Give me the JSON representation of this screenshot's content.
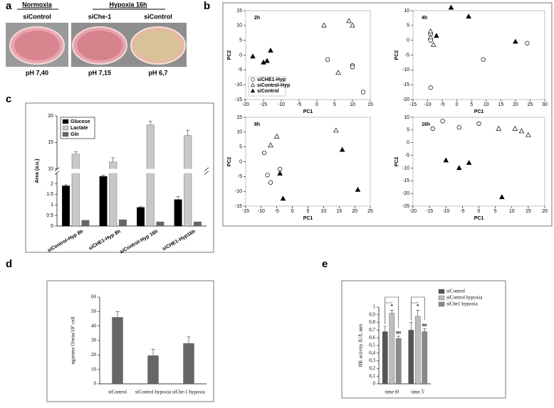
{
  "figure": {
    "panel_labels": [
      "a",
      "b",
      "c",
      "d",
      "e"
    ]
  },
  "panel_a": {
    "normoxia": "Normoxia",
    "hypoxia": "Hypoxia 16h",
    "dishes": [
      {
        "label": "siControl",
        "ph": "pH 7,40"
      },
      {
        "label": "siChe-1",
        "ph": "pH 7,15"
      },
      {
        "label": "siControl",
        "ph": "pH 6,7"
      }
    ]
  },
  "chart_data": [
    {
      "type": "scatter",
      "title": "2h",
      "x_label": "PC1",
      "y_label": "PC2",
      "xlim": [
        -20,
        15
      ],
      "xticks": [
        -20,
        -15,
        -10,
        -5,
        0,
        5,
        10,
        15
      ],
      "ylim": [
        -15,
        15
      ],
      "yticks": [
        -15,
        -10,
        -5,
        0,
        5,
        10,
        15
      ],
      "legend": "lower left",
      "series": [
        {
          "name": "siCHE1-Hyp",
          "marker": "circle-open",
          "color": "#000000",
          "x": [
            3,
            10,
            10,
            13
          ],
          "y": [
            -1.5,
            -3.5,
            -4,
            -12.5
          ]
        },
        {
          "name": "siControl-Hyp",
          "marker": "triangle-open",
          "color": "#000000",
          "x": [
            2,
            6,
            9,
            10
          ],
          "y": [
            10,
            -6,
            11.5,
            10
          ]
        },
        {
          "name": "siControl",
          "marker": "triangle-filled",
          "color": "#000000",
          "x": [
            -18,
            -15,
            -14,
            -13
          ],
          "y": [
            -0.5,
            -2.5,
            -2,
            1.5
          ]
        }
      ]
    },
    {
      "type": "scatter",
      "title": "4h",
      "x_label": "PC1",
      "y_label": "PC2",
      "xlim": [
        -15,
        30
      ],
      "xticks": [
        -15,
        -10,
        -5,
        0,
        5,
        10,
        15,
        20,
        25,
        30
      ],
      "ylim": [
        -20,
        10
      ],
      "yticks": [
        -20,
        -15,
        -10,
        -5,
        0,
        5,
        10
      ],
      "series": [
        {
          "marker": "circle-open",
          "color": "#000000",
          "x": [
            -9,
            -9,
            -9,
            9,
            24
          ],
          "y": [
            2,
            0,
            -16,
            -6.5,
            -1
          ]
        },
        {
          "marker": "triangle-open",
          "color": "#000000",
          "x": [
            -9,
            -8,
            -9
          ],
          "y": [
            3,
            -1.5,
            1
          ]
        },
        {
          "marker": "triangle-filled",
          "color": "#000000",
          "x": [
            -7,
            -2,
            4,
            20
          ],
          "y": [
            1.5,
            11,
            8,
            -0.5
          ]
        }
      ]
    },
    {
      "type": "scatter",
      "title": "8h",
      "x_label": "PC1",
      "y_label": "PC2",
      "xlim": [
        -15,
        25
      ],
      "xticks": [
        -15,
        -10,
        -5,
        0,
        5,
        10,
        15,
        20,
        25
      ],
      "ylim": [
        -15,
        15
      ],
      "yticks": [
        -15,
        -10,
        -5,
        0,
        5,
        10,
        15
      ],
      "series": [
        {
          "marker": "circle-open",
          "color": "#000000",
          "x": [
            -9,
            -8,
            -7,
            -4
          ],
          "y": [
            3,
            -4.5,
            -7,
            -2.5
          ]
        },
        {
          "marker": "triangle-open",
          "color": "#000000",
          "x": [
            -7,
            -5,
            14
          ],
          "y": [
            5.5,
            8.5,
            10.5
          ]
        },
        {
          "marker": "triangle-filled",
          "color": "#000000",
          "x": [
            -4,
            -3,
            16,
            21
          ],
          "y": [
            -4,
            -12.5,
            4,
            -9.5
          ]
        }
      ]
    },
    {
      "type": "scatter",
      "title": "16h",
      "x_label": "PC1",
      "y_label": "PC2",
      "xlim": [
        -20,
        20
      ],
      "xticks": [
        -20,
        -15,
        -10,
        -5,
        0,
        5,
        10,
        15,
        20
      ],
      "ylim": [
        -25,
        10
      ],
      "yticks": [
        -25,
        -20,
        -15,
        -10,
        -5,
        0,
        5,
        10
      ],
      "series": [
        {
          "marker": "circle-open",
          "color": "#000000",
          "x": [
            -14,
            -11,
            -6,
            0
          ],
          "y": [
            5.5,
            8.5,
            6,
            7.5
          ]
        },
        {
          "marker": "triangle-open",
          "color": "#000000",
          "x": [
            6,
            11,
            13,
            15
          ],
          "y": [
            5.5,
            5.5,
            4.5,
            3
          ]
        },
        {
          "marker": "triangle-filled",
          "color": "#000000",
          "x": [
            -10,
            -6,
            -3,
            7
          ],
          "y": [
            -7,
            -10,
            -8,
            -21.5
          ]
        }
      ]
    },
    {
      "type": "bar",
      "y_label": "Area (a.u.)",
      "categories": [
        "siControl-Hyp 8h",
        "siCHE1-Hyp 8h",
        "siControl-Hyp 16h",
        "siCHE1-Hyp16h"
      ],
      "ylim": [
        0,
        20
      ],
      "ybreak": [
        2.5,
        10
      ],
      "yticks": [
        0,
        0.5,
        1,
        1.5,
        2,
        10,
        15,
        20
      ],
      "legend": "upper left",
      "series": [
        {
          "name": "Glucose",
          "color": "#000000",
          "values": [
            1.9,
            2.35,
            0.88,
            1.25
          ],
          "errors": [
            0.05,
            0.05,
            0.04,
            0.15
          ]
        },
        {
          "name": "Lactate",
          "color": "#c8c8c8",
          "values": [
            12.8,
            11.3,
            18.3,
            16.3
          ],
          "errors": [
            0.4,
            0.8,
            0.7,
            1.0
          ]
        },
        {
          "name": "Gln",
          "color": "#666666",
          "values": [
            0.27,
            0.3,
            0.2,
            0.2
          ]
        }
      ]
    },
    {
      "type": "bar",
      "y_label": "ngatoms O/min/10⁷ cell",
      "categories": [
        "siControl",
        "siControl hypoxia",
        "siChe-1 hypoxia"
      ],
      "ylim": [
        0,
        60
      ],
      "yticks": [
        0,
        10,
        20,
        30,
        40,
        50,
        60
      ],
      "series": [
        {
          "color": "#666666",
          "values": [
            46,
            19.5,
            28
          ],
          "errors": [
            4,
            4.5,
            4.5
          ]
        }
      ]
    },
    {
      "type": "bar",
      "y_label": "HK activity IU/L unit",
      "categories": [
        "time t0",
        "time 5'"
      ],
      "ylim": [
        0,
        1
      ],
      "yticks": [
        0,
        {
          "value": 0.1,
          "label": "0,1"
        },
        {
          "value": 0.2,
          "label": "0,2"
        },
        {
          "value": 0.3,
          "label": "0,3"
        },
        {
          "value": 0.4,
          "label": "0,4"
        },
        {
          "value": 0.5,
          "label": "0,5"
        },
        {
          "value": 0.6,
          "label": "0,6"
        },
        {
          "value": 0.7,
          "label": "0,7"
        },
        {
          "value": 0.8,
          "label": "0,8"
        },
        {
          "value": 0.9,
          "label": "0,9"
        },
        1
      ],
      "legend": "upper right",
      "comparison_brackets": true,
      "series": [
        {
          "name": "siControl",
          "color": "#555555",
          "values": [
            0.68,
            0.7
          ],
          "errors": [
            0.07,
            0.1
          ]
        },
        {
          "name": "siControl hypoxia",
          "color": "#bdbdbd",
          "values": [
            0.92,
            0.88
          ],
          "errors": [
            0.04,
            0.08
          ],
          "significance": [
            "*",
            "*"
          ]
        },
        {
          "name": "siChe1 hypoxia",
          "color": "#8a8a8a",
          "values": [
            0.59,
            0.68
          ],
          "errors": [
            0.03,
            0.04
          ],
          "significance": [
            "ns",
            "ns"
          ]
        }
      ]
    }
  ]
}
